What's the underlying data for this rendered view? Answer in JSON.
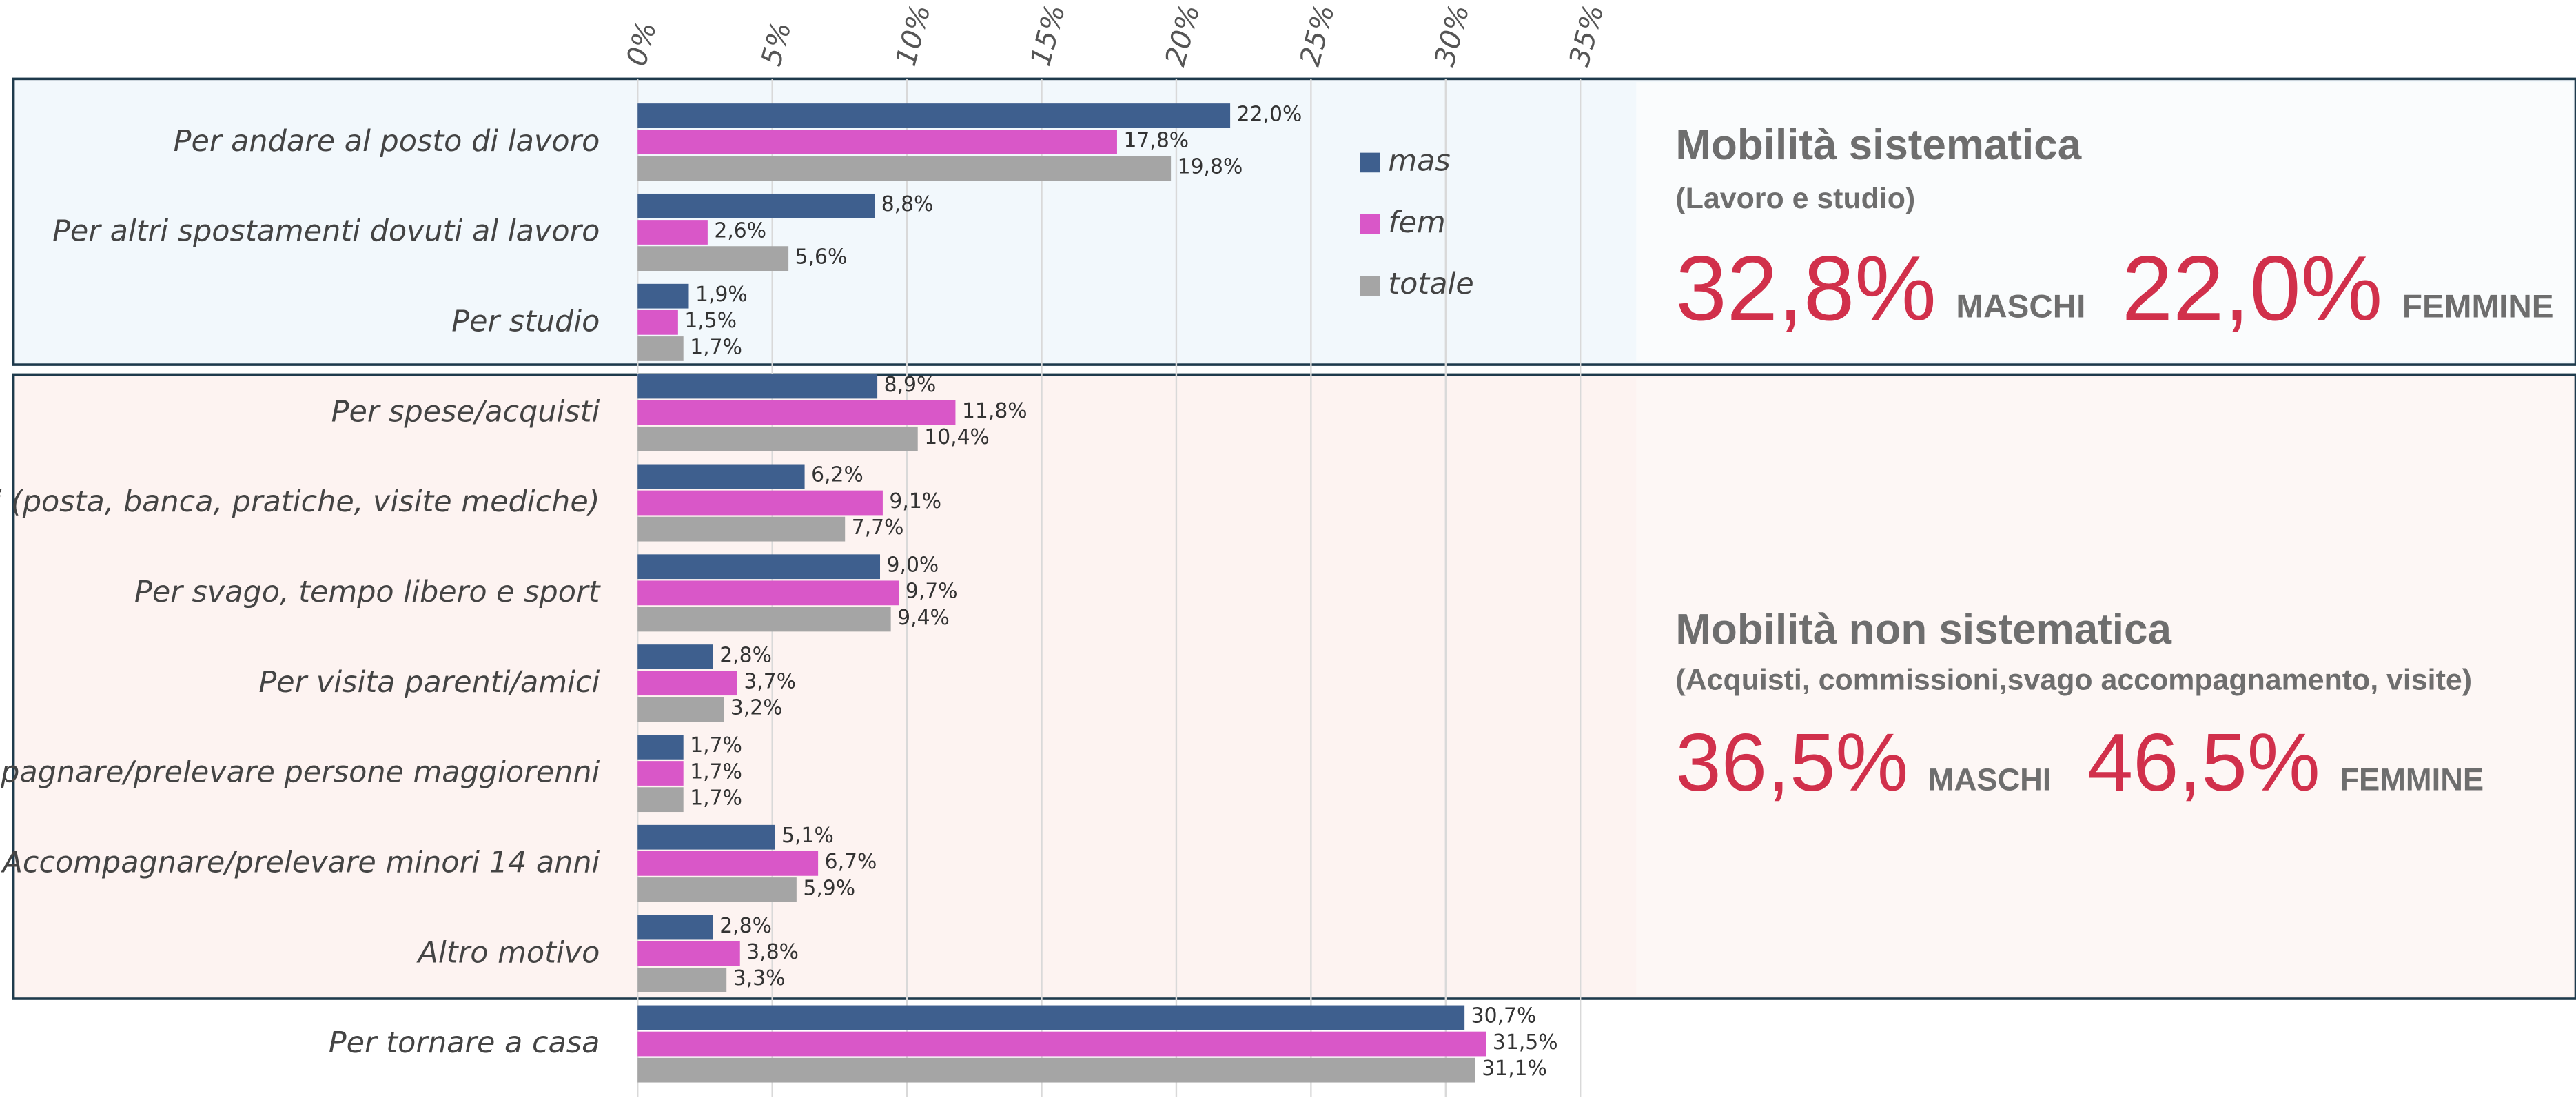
{
  "chart_data": {
    "type": "bar",
    "orientation": "horizontal",
    "categories": [
      "Per andare al posto di lavoro",
      "Per altri spostamenti dovuti al lavoro",
      "Per studio",
      "Per spese/acquisti",
      "i (posta, banca, pratiche, visite mediche)",
      "Per svago, tempo libero e sport",
      "Per visita parenti/amici",
      "pagnare/prelevare persone maggiorenni",
      "Accompagnare/prelevare minori 14 anni",
      "Altro motivo",
      "Per tornare a casa"
    ],
    "series": [
      {
        "name": "mas",
        "color": "#3e5f8e",
        "values": [
          22.0,
          8.8,
          1.9,
          8.9,
          6.2,
          9.0,
          2.8,
          1.7,
          5.1,
          2.8,
          30.7
        ],
        "value_labels": [
          "22,0%",
          "8,8%",
          "1,9%",
          "8,9%",
          "6,2%",
          "9,0%",
          "2,8%",
          "1,7%",
          "5,1%",
          "2,8%",
          "30,7%"
        ]
      },
      {
        "name": "fem",
        "color": "#d957c8",
        "values": [
          17.8,
          2.6,
          1.5,
          11.8,
          9.1,
          9.7,
          3.7,
          1.7,
          6.7,
          3.8,
          31.5
        ],
        "value_labels": [
          "17,8%",
          "2,6%",
          "1,5%",
          "11,8%",
          "9,1%",
          "9,7%",
          "3,7%",
          "1,7%",
          "6,7%",
          "3,8%",
          "31,5%"
        ]
      },
      {
        "name": "totale",
        "color": "#a5a5a5",
        "values": [
          19.8,
          5.6,
          1.7,
          10.4,
          7.7,
          9.4,
          3.2,
          1.7,
          5.9,
          3.3,
          31.1
        ],
        "value_labels": [
          "19,8%",
          "5,6%",
          "1,7%",
          "10,4%",
          "7,7%",
          "9,4%",
          "3,2%",
          "1,7%",
          "5,9%",
          "3,3%",
          "31,1%"
        ]
      }
    ],
    "xlim": [
      0,
      35
    ],
    "xticks": [
      {
        "value": 0,
        "label": "0%"
      },
      {
        "value": 5,
        "label": "5%"
      },
      {
        "value": 10,
        "label": "10%"
      },
      {
        "value": 15,
        "label": "15%"
      },
      {
        "value": 20,
        "label": "20%"
      },
      {
        "value": 25,
        "label": "25%"
      },
      {
        "value": 30,
        "label": "30%"
      },
      {
        "value": 35,
        "label": "35%"
      }
    ],
    "grid": true,
    "annotations": [
      {
        "title": "Mobilità sistematica",
        "subtitle": "(Lavoro e studio)",
        "male_value": "32,8%",
        "male_label": "MASCHI",
        "female_value": "22,0%",
        "female_label": "FEMMINE"
      },
      {
        "title": "Mobilità non sistematica",
        "subtitle": "(Acquisti, commissioni,svago accompagnamento, visite)",
        "male_value": "36,5%",
        "male_label": "MASCHI",
        "female_value": "46,5%",
        "female_label": "FEMMINE"
      }
    ]
  }
}
